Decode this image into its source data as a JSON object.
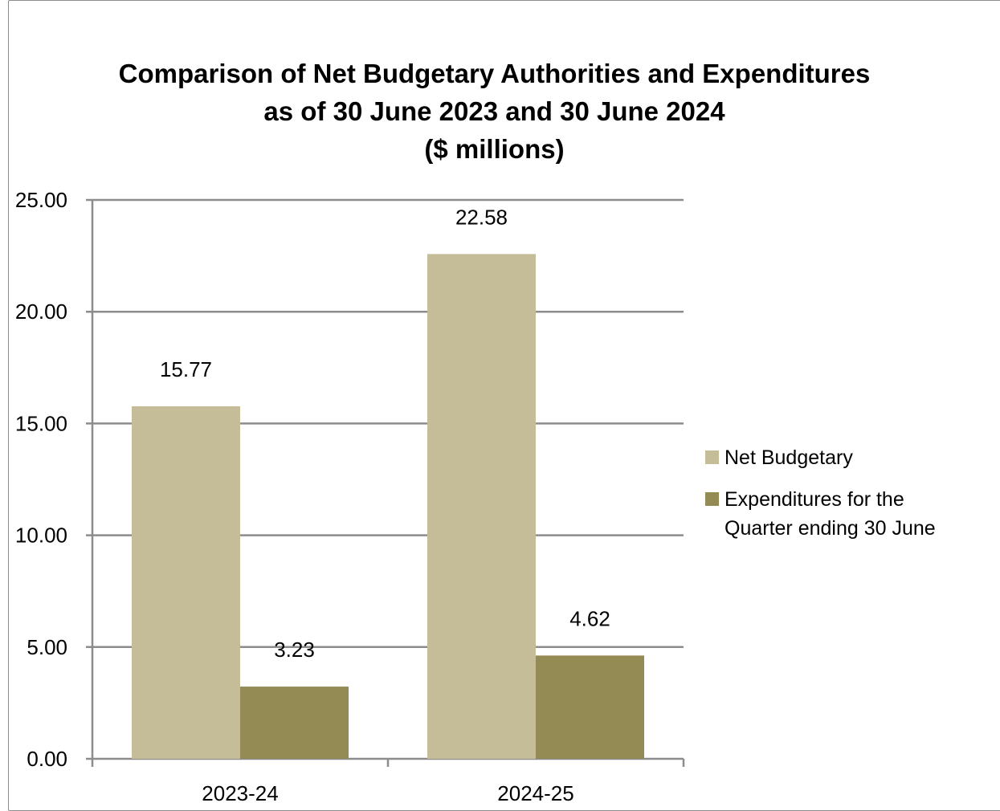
{
  "chart_data": {
    "type": "bar",
    "title": [
      "Comparison of Net Budgetary Authorities and Expenditures",
      "as of 30 June 2023 and 30 June 2024",
      "($ millions)"
    ],
    "categories": [
      "2023-24",
      "2024-25"
    ],
    "series": [
      {
        "name": "Net Budgetary",
        "values": [
          15.77,
          22.58
        ],
        "labels": [
          "15.77",
          "22.58"
        ],
        "color": "#c4bd97"
      },
      {
        "name": "Expenditures for the Quarter ending 30 June",
        "name_lines": [
          "Expenditures for the",
          "Quarter ending 30 June"
        ],
        "values": [
          3.23,
          4.62
        ],
        "labels": [
          "3.23",
          "4.62"
        ],
        "color": "#948a54"
      }
    ],
    "yticks": [
      "0.00",
      "5.00",
      "10.00",
      "15.00",
      "20.00",
      "25.00"
    ],
    "ylim": [
      0,
      25
    ],
    "grid": true,
    "legend_position": "right",
    "gridline_color": "#8c8c8c"
  }
}
